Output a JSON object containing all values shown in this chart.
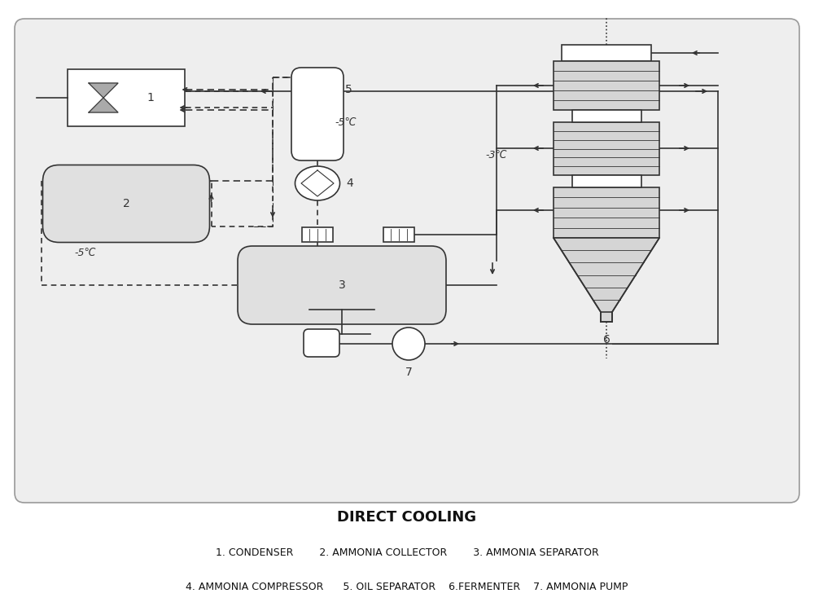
{
  "title": "DIRECT COOLING",
  "legend_line1": "1. CONDENSER        2. AMMONIA COLLECTOR        3. AMMONIA SEPARATOR",
  "legend_line2": "4. AMMONIA COMPRESSOR      5. OIL SEPARATOR    6.FERMENTER    7. AMMONIA PUMP",
  "bg_color": "#f0f0f0",
  "box_bg": "#ebebeb",
  "line_color": "#333333",
  "temp1": "-5℃",
  "temp2": "-3℃"
}
